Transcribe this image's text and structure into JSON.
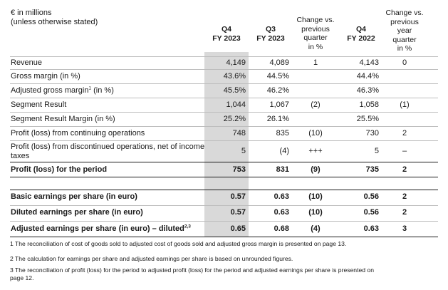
{
  "header": {
    "unit_line1": "€ in millions",
    "unit_line2": "(unless otherwise stated)",
    "columns": {
      "q4_2023": [
        "Q4",
        "FY 2023"
      ],
      "q3_2023": [
        "Q3",
        "FY 2023"
      ],
      "change_prev_quarter": [
        "Change vs.",
        "previous",
        "quarter",
        "in %"
      ],
      "q4_2022": [
        "Q4",
        "FY 2022"
      ],
      "change_prev_year": [
        "Change vs.",
        "previous",
        "year",
        "quarter",
        "in %"
      ]
    }
  },
  "rows": [
    {
      "label": "Revenue",
      "q4_2023": "4,149",
      "q3_2023": "4,089",
      "chg_q": "1",
      "q4_2022": "4,143",
      "chg_y": "0"
    },
    {
      "label": "Gross margin (in %)",
      "q4_2023": "43.6%",
      "q3_2023": "44.5%",
      "chg_q": "",
      "q4_2022": "44.4%",
      "chg_y": ""
    },
    {
      "label_main": "Adjusted gross margin",
      "label_sup": "1",
      "label_tail": " (in %)",
      "q4_2023": "45.5%",
      "q3_2023": "46.2%",
      "chg_q": "",
      "q4_2022": "46.3%",
      "chg_y": ""
    },
    {
      "label": "Segment Result",
      "q4_2023": "1,044",
      "q3_2023": "1,067",
      "chg_q": "(2)",
      "q4_2022": "1,058",
      "chg_y": "(1)"
    },
    {
      "label": "Segment Result Margin (in %)",
      "q4_2023": "25.2%",
      "q3_2023": "26.1%",
      "chg_q": "",
      "q4_2022": "25.5%",
      "chg_y": ""
    },
    {
      "label": "Profit (loss) from continuing operations",
      "q4_2023": "748",
      "q3_2023": "835",
      "chg_q": "(10)",
      "q4_2022": "730",
      "chg_y": "2"
    },
    {
      "label_line1": "Profit (loss) from discontinued operations, net of income",
      "label_line2": "taxes",
      "q4_2023": "5",
      "q3_2023": "(4)",
      "chg_q": "+++",
      "q4_2022": "5",
      "chg_y": "–"
    },
    {
      "label": "Profit (loss) for the period",
      "q4_2023": "753",
      "q3_2023": "831",
      "chg_q": "(9)",
      "q4_2022": "735",
      "chg_y": "2"
    },
    {
      "label": "Basic earnings per share (in euro)",
      "q4_2023": "0.57",
      "q3_2023": "0.63",
      "chg_q": "(10)",
      "q4_2022": "0.56",
      "chg_y": "2"
    },
    {
      "label": "Diluted earnings per share (in euro)",
      "q4_2023": "0.57",
      "q3_2023": "0.63",
      "chg_q": "(10)",
      "q4_2022": "0.56",
      "chg_y": "2"
    },
    {
      "label_main": "Adjusted earnings per share (in euro) – diluted",
      "label_sup": "2,3",
      "q4_2023": "0.65",
      "q3_2023": "0.68",
      "chg_q": "(4)",
      "q4_2022": "0.63",
      "chg_y": "3"
    }
  ],
  "footnotes": [
    "1 The reconciliation of cost of goods sold to adjusted cost of goods sold and adjusted gross margin is presented on page 13.",
    "2 The calculation for earnings per share and adjusted earnings per share is based on unrounded figures.",
    "3 The reconciliation of profit (loss) for the period to adjusted profit (loss) for the period and adjusted earnings per share is presented on",
    "page 12."
  ]
}
